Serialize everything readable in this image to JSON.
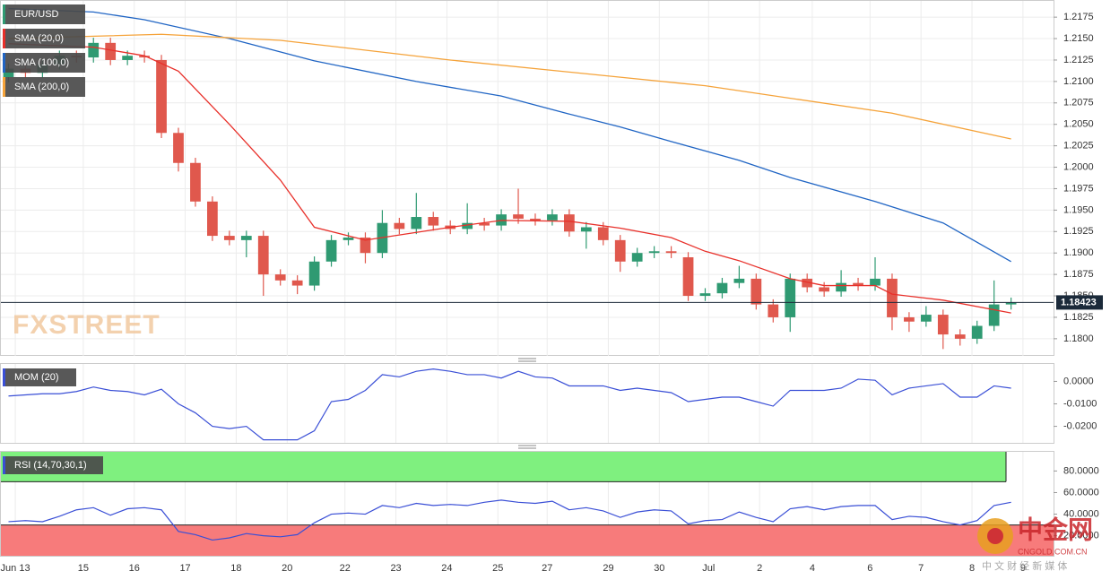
{
  "chart_data": [
    {
      "type": "candlestick",
      "title": "EUR/USD",
      "open": [
        1.2105,
        1.2115,
        1.211,
        1.212,
        1.213,
        1.2128,
        1.2145,
        1.2125,
        1.213,
        1.2125,
        1.204,
        1.2005,
        1.196,
        1.192,
        1.1915,
        1.192,
        1.1875,
        1.1868,
        1.1862,
        1.189,
        1.1915,
        1.1918,
        1.19,
        1.1935,
        1.1928,
        1.1942,
        1.1932,
        1.1928,
        1.1935,
        1.1932,
        1.1945,
        1.194,
        1.1938,
        1.1945,
        1.1925,
        1.193,
        1.1915,
        1.189,
        1.19,
        1.1902,
        1.1895,
        1.185,
        1.1853,
        1.1865,
        1.187,
        1.184,
        1.1825,
        1.187,
        1.186,
        1.1855,
        1.1865,
        1.1862,
        1.187,
        1.1825,
        1.182,
        1.1828,
        1.1805,
        1.18,
        1.1815,
        1.184
      ],
      "high": [
        1.2121,
        1.2121,
        1.2126,
        1.2136,
        1.2136,
        1.2151,
        1.2151,
        1.2136,
        1.2136,
        1.2131,
        1.2046,
        1.2011,
        1.1966,
        1.1926,
        1.1926,
        1.1926,
        1.1881,
        1.1874,
        1.1896,
        1.1921,
        1.1924,
        1.1924,
        1.195,
        1.1941,
        1.197,
        1.1948,
        1.1938,
        1.1958,
        1.1941,
        1.1951,
        1.1975,
        1.1946,
        1.1951,
        1.1951,
        1.1936,
        1.1936,
        1.1921,
        1.1906,
        1.1908,
        1.1908,
        1.1901,
        1.1859,
        1.1871,
        1.1885,
        1.1876,
        1.1846,
        1.1876,
        1.1876,
        1.1866,
        1.188,
        1.1871,
        1.1895,
        1.1876,
        1.1831,
        1.1838,
        1.1834,
        1.1811,
        1.1821,
        1.1868,
        1.1848
      ],
      "low": [
        1.2099,
        1.2104,
        1.2104,
        1.2114,
        1.2122,
        1.2122,
        1.2119,
        1.2119,
        1.2122,
        1.2034,
        1.1995,
        1.1954,
        1.1914,
        1.1909,
        1.1895,
        1.185,
        1.1862,
        1.1852,
        1.1856,
        1.1884,
        1.1909,
        1.1888,
        1.1894,
        1.1922,
        1.1922,
        1.1926,
        1.1922,
        1.1922,
        1.1926,
        1.1926,
        1.1934,
        1.1932,
        1.1932,
        1.1919,
        1.1905,
        1.1909,
        1.1878,
        1.1884,
        1.1894,
        1.1894,
        1.1844,
        1.1844,
        1.1847,
        1.1859,
        1.1834,
        1.1819,
        1.1808,
        1.1854,
        1.1849,
        1.1849,
        1.1856,
        1.1856,
        1.181,
        1.1808,
        1.1814,
        1.1788,
        1.1792,
        1.1794,
        1.1809,
        1.1834
      ],
      "close": [
        1.2115,
        1.211,
        1.212,
        1.213,
        1.2128,
        1.2145,
        1.2125,
        1.213,
        1.2128,
        1.204,
        1.2005,
        1.196,
        1.192,
        1.1915,
        1.192,
        1.1875,
        1.1868,
        1.1862,
        1.189,
        1.1915,
        1.1918,
        1.19,
        1.1935,
        1.1928,
        1.1942,
        1.1932,
        1.1928,
        1.1935,
        1.1932,
        1.1945,
        1.194,
        1.1938,
        1.1945,
        1.1925,
        1.193,
        1.1915,
        1.189,
        1.19,
        1.1902,
        1.19,
        1.185,
        1.1853,
        1.1865,
        1.187,
        1.184,
        1.1825,
        1.187,
        1.186,
        1.1855,
        1.1865,
        1.1862,
        1.187,
        1.1825,
        1.182,
        1.1828,
        1.1805,
        1.18,
        1.1815,
        1.184,
        1.1842
      ],
      "up_color": "#2f9a72",
      "down_color": "#e0584d",
      "series": [
        {
          "name": "SMA (20,0)",
          "color": "#e8302a",
          "x": [
            0,
            5,
            8,
            10,
            13,
            16,
            18,
            21,
            24,
            26,
            29,
            33,
            36,
            39,
            41,
            43,
            46,
            48,
            51,
            52,
            55,
            59
          ],
          "values": [
            1.2144,
            1.214,
            1.213,
            1.2112,
            1.205,
            1.1985,
            1.193,
            1.1915,
            1.1924,
            1.193,
            1.1938,
            1.1937,
            1.1929,
            1.1918,
            1.1902,
            1.1891,
            1.187,
            1.1862,
            1.1862,
            1.1852,
            1.1845,
            1.183
          ]
        },
        {
          "name": "SMA (100,0)",
          "color": "#2065c4",
          "x": [
            0,
            5,
            8,
            13,
            18,
            24,
            29,
            33,
            36,
            39,
            43,
            46,
            51,
            55,
            59
          ],
          "values": [
            1.2185,
            1.2181,
            1.2172,
            1.215,
            1.2124,
            1.21,
            1.2083,
            1.2062,
            1.2047,
            1.203,
            1.2008,
            1.1988,
            1.196,
            1.1935,
            1.189
          ]
        },
        {
          "name": "SMA (200,0)",
          "color": "#f5a33a",
          "x": [
            0,
            9,
            16,
            26,
            36,
            41,
            52,
            59
          ],
          "values": [
            1.215,
            1.2155,
            1.2148,
            1.2125,
            1.2105,
            1.2095,
            1.2063,
            1.2033
          ]
        }
      ],
      "last_price": 1.18423,
      "watermark": "FXSTREET",
      "ylim": [
        1.178,
        1.2195
      ],
      "yticks": [
        1.2175,
        {
          "value": 1.215,
          "label": "1.2150"
        },
        1.2125,
        {
          "value": 1.21,
          "label": "1.2100"
        },
        1.2075,
        {
          "value": 1.205,
          "label": "1.2050"
        },
        1.2025,
        {
          "value": 1.2,
          "label": "1.2000"
        },
        1.1975,
        {
          "value": 1.195,
          "label": "1.1950"
        },
        1.1925,
        {
          "value": 1.19,
          "label": "1.1900"
        },
        1.1875,
        {
          "value": 1.185,
          "label": "1.1850"
        },
        1.1825,
        {
          "value": 1.18,
          "label": "1.1800"
        }
      ],
      "xlim": [
        -0.5,
        61.5
      ],
      "xticks": [
        {
          "value": 0.4,
          "label": "Jun 13"
        },
        {
          "value": 4.4,
          "label": "15"
        },
        {
          "value": 7.4,
          "label": "16"
        },
        {
          "value": 10.4,
          "label": "17"
        },
        {
          "value": 13.4,
          "label": "18"
        },
        {
          "value": 16.4,
          "label": "20"
        },
        {
          "value": 19.8,
          "label": "22"
        },
        {
          "value": 22.8,
          "label": "23"
        },
        {
          "value": 25.8,
          "label": "24"
        },
        {
          "value": 28.8,
          "label": "25"
        },
        {
          "value": 31.7,
          "label": "27"
        },
        {
          "value": 35.3,
          "label": "29"
        },
        {
          "value": 38.3,
          "label": "30"
        },
        {
          "value": 41.2,
          "label": "Jul"
        },
        {
          "value": 44.2,
          "label": "2"
        },
        {
          "value": 47.3,
          "label": "4"
        },
        {
          "value": 50.7,
          "label": "6"
        },
        {
          "value": 53.7,
          "label": "7"
        },
        {
          "value": 56.7,
          "label": "8"
        },
        {
          "value": 59.7,
          "label": "9"
        }
      ]
    },
    {
      "type": "line",
      "title": "MOM (20)",
      "color": "#3a4fd6",
      "values": [
        -0.0065,
        -0.006,
        -0.0055,
        -0.0055,
        -0.0045,
        -0.0025,
        -0.004,
        -0.0045,
        -0.006,
        -0.0035,
        -0.01,
        -0.014,
        -0.02,
        -0.021,
        -0.02,
        -0.026,
        -0.026,
        -0.026,
        -0.022,
        -0.009,
        -0.008,
        -0.004,
        0.003,
        0.002,
        0.0045,
        0.0055,
        0.0045,
        0.003,
        0.003,
        0.0015,
        0.0045,
        0.002,
        0.0015,
        -0.002,
        -0.002,
        -0.002,
        -0.004,
        -0.003,
        -0.004,
        -0.005,
        -0.009,
        -0.008,
        -0.007,
        -0.007,
        -0.009,
        -0.011,
        -0.004,
        -0.004,
        -0.004,
        -0.003,
        0.001,
        0.0005,
        -0.006,
        -0.003,
        -0.002,
        -0.001,
        -0.007,
        -0.007,
        -0.002,
        -0.003
      ],
      "ylim": [
        -0.02735,
        0.00816
      ],
      "yticks": [
        {
          "value": 0,
          "label": "0.0000"
        },
        {
          "value": -0.01,
          "label": "-0.0100"
        },
        {
          "value": -0.02,
          "label": "-0.0200"
        }
      ]
    },
    {
      "type": "rsi",
      "title": "RSI (14,70,30,1)",
      "color": "#3a4fd6",
      "values": [
        33,
        34,
        33,
        38,
        44,
        46,
        39,
        45,
        46,
        44,
        24,
        21,
        16,
        18,
        22,
        20,
        19,
        21,
        32,
        40,
        41,
        40,
        48,
        46,
        50,
        48,
        49,
        48,
        51,
        53,
        51,
        50,
        52,
        44,
        46,
        43,
        37,
        42,
        44,
        43,
        31,
        34,
        35,
        42,
        37,
        33,
        45,
        47,
        44,
        47,
        48,
        48,
        35,
        38,
        37,
        33,
        30,
        34,
        48,
        51
      ],
      "overbought": 70,
      "oversold": 30,
      "overbought_color": "#7ff07f",
      "oversold_color": "#f77b7b",
      "ylim": [
        1.4,
        98.6
      ],
      "yticks": [
        {
          "value": 80,
          "label": "80.0000"
        },
        {
          "value": 60,
          "label": "60.0000"
        },
        {
          "value": 40,
          "label": "40.0000"
        },
        {
          "value": 20,
          "label": "20.0000"
        }
      ]
    }
  ],
  "footer_watermark": {
    "brand": "中金网",
    "site": "CNGOLD.COM.CN",
    "slogan": "中 文 财 经 新 媒 体"
  }
}
